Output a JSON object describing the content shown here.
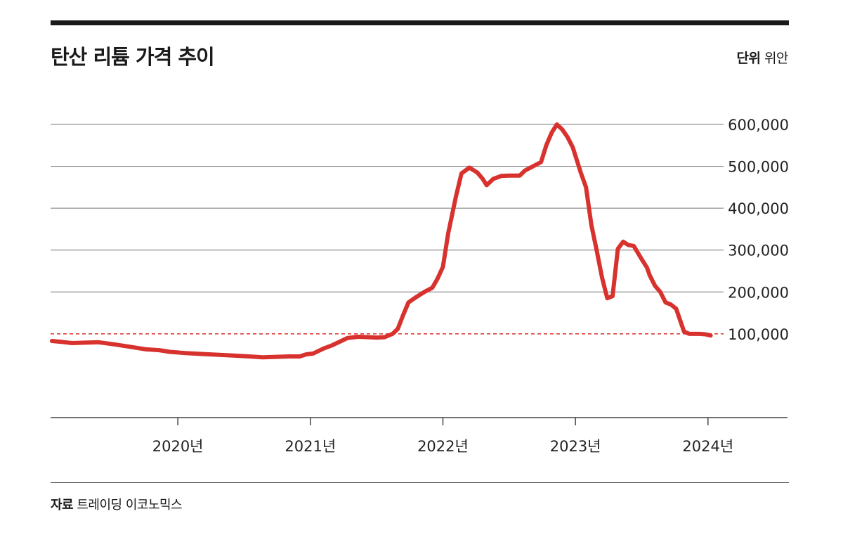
{
  "header": {
    "title": "탄산 리튬 가격 추이",
    "unit_label": "단위",
    "unit_value": "위안"
  },
  "source": {
    "label": "자료",
    "value": "트레이딩 이코노믹스"
  },
  "chart_data": {
    "type": "line",
    "title": "탄산 리튬 가격 추이",
    "ylabel": "",
    "xlabel": "",
    "ylim": [
      -100000,
      600000
    ],
    "xlim": [
      2019.04,
      2024.6
    ],
    "yticks": [
      100000,
      200000,
      300000,
      400000,
      500000,
      600000
    ],
    "ytick_labels": [
      "100,000",
      "200,000",
      "300,000",
      "400,000",
      "500,000",
      "600,000"
    ],
    "xticks": [
      2020,
      2021,
      2022,
      2023,
      2024
    ],
    "xtick_labels": [
      "2020년",
      "2021년",
      "2022년",
      "2023년",
      "2024년"
    ],
    "reference_line": {
      "value": 100000,
      "style": "dashed",
      "color": "#d8322e"
    },
    "grid": true,
    "line_color": "#d8322e",
    "series": [
      {
        "x": [
          2019.05,
          2019.12,
          2019.2,
          2019.3,
          2019.4,
          2019.52,
          2019.64,
          2019.76,
          2019.86,
          2019.94,
          2020.06,
          2020.18,
          2020.3,
          2020.42,
          2020.54,
          2020.64,
          2020.74,
          2020.84,
          2020.92,
          2020.97,
          2021.02,
          2021.1,
          2021.16,
          2021.2,
          2021.28,
          2021.36,
          2021.44,
          2021.5,
          2021.56,
          2021.62,
          2021.66,
          2021.7,
          2021.74,
          2021.8,
          2021.86,
          2021.92,
          2021.96,
          2022.0,
          2022.04,
          2022.1,
          2022.14,
          2022.2,
          2022.26,
          2022.3,
          2022.33,
          2022.38,
          2022.44,
          2022.5,
          2022.58,
          2022.62,
          2022.68,
          2022.74,
          2022.78,
          2022.82,
          2022.86,
          2022.9,
          2022.94,
          2022.98,
          2023.04,
          2023.08,
          2023.12,
          2023.16,
          2023.2,
          2023.24,
          2023.28,
          2023.32,
          2023.36,
          2023.4,
          2023.44,
          2023.5,
          2023.54,
          2023.56,
          2023.6,
          2023.64,
          2023.68,
          2023.72,
          2023.76,
          2023.82,
          2023.86,
          2023.9,
          2023.94,
          2023.98,
          2024.02
        ],
        "y": [
          83000,
          81000,
          78000,
          79000,
          80000,
          75000,
          69000,
          63000,
          61000,
          57000,
          54000,
          52000,
          50000,
          48000,
          46000,
          44000,
          45000,
          46000,
          46000,
          51000,
          53000,
          65000,
          72000,
          78000,
          90000,
          93000,
          92000,
          91000,
          92000,
          100000,
          112000,
          145000,
          175000,
          188000,
          200000,
          210000,
          232000,
          260000,
          340000,
          430000,
          483000,
          497000,
          485000,
          470000,
          455000,
          470000,
          477000,
          478000,
          478000,
          490000,
          500000,
          510000,
          550000,
          580000,
          600000,
          588000,
          570000,
          545000,
          485000,
          450000,
          360000,
          300000,
          235000,
          185000,
          190000,
          303000,
          320000,
          312000,
          310000,
          278000,
          258000,
          240000,
          215000,
          200000,
          175000,
          170000,
          160000,
          105000,
          100000,
          100000,
          100000,
          99000,
          96000
        ]
      }
    ]
  }
}
